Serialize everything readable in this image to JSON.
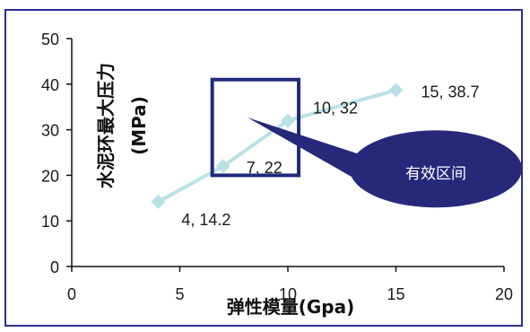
{
  "chart_data": {
    "type": "line",
    "xlabel": "弹性模量(Gpa)",
    "ylabel_line1": "水泥环最大压力",
    "ylabel_line2": "(MPa)",
    "xlim": [
      0,
      20
    ],
    "ylim": [
      0,
      50
    ],
    "xticks": [
      "0",
      "5",
      "10",
      "15",
      "20"
    ],
    "yticks": [
      "0",
      "10",
      "20",
      "30",
      "40",
      "50"
    ],
    "grid": false,
    "series": [
      {
        "x": [
          4,
          7,
          10,
          15
        ],
        "y": [
          14.2,
          22,
          32,
          38.7
        ],
        "labels": [
          "4, 14.2",
          "7, 22",
          "10, 32",
          "15, 38.7"
        ],
        "color": "#b9e2e6"
      }
    ],
    "annotation": {
      "callout_text": "有效区间",
      "callout_color": "#26287a",
      "box_color": "#1f2a7a",
      "box_x_range": [
        6.5,
        10.5
      ],
      "box_y_range": [
        20,
        41
      ]
    }
  }
}
